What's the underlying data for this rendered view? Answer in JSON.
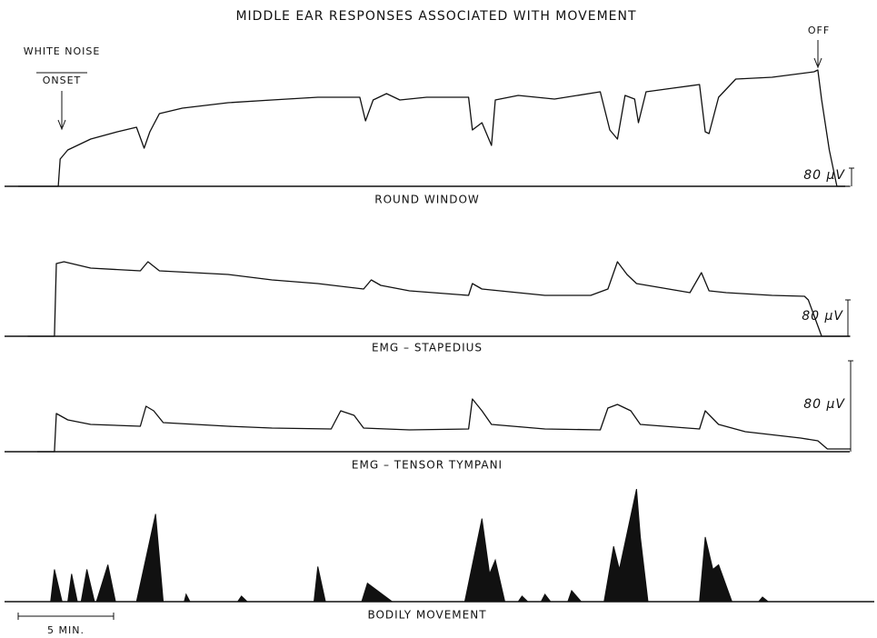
{
  "title": "MIDDLE EAR RESPONSES ASSOCIATED WITH MOVEMENT",
  "annotations": {
    "onset_top": "WHITE NOISE",
    "onset_bottom": "ONSET",
    "off": "OFF"
  },
  "timebar": {
    "value": 5,
    "label": "5 MIN."
  },
  "chart_data": [
    {
      "type": "line",
      "label": "ROUND WINDOW",
      "xlim": [
        -0.5,
        45
      ],
      "ylim": [
        0,
        580
      ],
      "scalebar": {
        "value": 80,
        "label": "80 µV"
      },
      "x": [
        0,
        2.1,
        2.2,
        2.6,
        3.8,
        5.2,
        6.2,
        6.6,
        6.9,
        7.4,
        8.6,
        11,
        13.3,
        15.7,
        17.9,
        18.2,
        18.6,
        19.3,
        20,
        21.4,
        23.6,
        23.8,
        24.3,
        24.8,
        25,
        26.2,
        28.1,
        30.5,
        31,
        31.4,
        31.8,
        32.3,
        32.5,
        32.9,
        34.3,
        35.7,
        36,
        36.2,
        36.7,
        37.6,
        39.5,
        41.7,
        41.9,
        42.1,
        42.5,
        42.9,
        43.6
      ],
      "values": [
        0,
        0,
        120,
        160,
        208,
        240,
        260,
        168,
        240,
        320,
        344,
        368,
        380,
        392,
        392,
        288,
        380,
        408,
        380,
        392,
        392,
        248,
        280,
        180,
        380,
        400,
        384,
        416,
        248,
        208,
        400,
        384,
        280,
        416,
        432,
        448,
        240,
        232,
        392,
        472,
        480,
        504,
        512,
        380,
        160,
        0,
        0
      ]
    },
    {
      "type": "line",
      "label": "EMG – STAPEDIUS",
      "xlim": [
        -0.5,
        45
      ],
      "ylim": [
        0,
        200
      ],
      "scalebar": {
        "value": 80,
        "label": "80 µV"
      },
      "x": [
        0.5,
        1.9,
        2,
        2.4,
        3.8,
        6.4,
        6.8,
        7.4,
        11,
        13.3,
        15.7,
        18.1,
        18.5,
        19,
        20.5,
        23.6,
        23.8,
        24.3,
        27.6,
        30,
        30.9,
        31.4,
        31.9,
        32.4,
        35.2,
        35.8,
        36.2,
        37.1,
        39.5,
        41.2,
        41.4,
        42.1,
        43.6
      ],
      "values": [
        0,
        0,
        160,
        164,
        150,
        144,
        164,
        144,
        136,
        124,
        116,
        104,
        124,
        112,
        100,
        90,
        116,
        104,
        90,
        90,
        104,
        164,
        136,
        116,
        96,
        140,
        100,
        96,
        90,
        88,
        80,
        0,
        0
      ]
    },
    {
      "type": "line",
      "label": "EMG – TENSOR TYMPANI",
      "xlim": [
        -0.5,
        45
      ],
      "ylim": [
        0,
        85.6
      ],
      "scalebar": {
        "value": 80,
        "label": "80 µV"
      },
      "x": [
        1,
        1.9,
        2,
        2.6,
        3.8,
        6.4,
        6.7,
        7.1,
        7.6,
        11,
        13.3,
        16.4,
        16.9,
        17.6,
        18.1,
        20.5,
        23.6,
        23.8,
        24.3,
        24.8,
        27.6,
        30.5,
        30.9,
        31.4,
        32.1,
        32.6,
        35.7,
        36,
        36.7,
        38.1,
        41,
        41.9,
        42.4,
        43.6
      ],
      "values": [
        0,
        0,
        33.6,
        28,
        24,
        22.4,
        40,
        36,
        25.6,
        22.4,
        20.8,
        20,
        36,
        32,
        20.8,
        19.2,
        20,
        46.4,
        36,
        24,
        20,
        19.2,
        38.4,
        41.6,
        36,
        24,
        20,
        36,
        24,
        17.6,
        12,
        9.6,
        2.4,
        2.4
      ]
    },
    {
      "type": "area",
      "label": "BODILY MOVEMENT",
      "xlim": [
        -0.5,
        45
      ],
      "ylim": [
        0,
        130
      ],
      "x": [
        -0.5,
        1.7,
        1.9,
        2.3,
        2.6,
        2.8,
        3.1,
        3.3,
        3.6,
        4,
        4.1,
        4.7,
        5.1,
        6.2,
        7.2,
        7.6,
        8.7,
        8.8,
        9,
        11.5,
        11.7,
        12,
        15.5,
        15.7,
        16.1,
        18,
        18.3,
        19.6,
        23.4,
        24.3,
        24.7,
        25,
        25.5,
        26.2,
        26.4,
        26.7,
        27.4,
        27.6,
        27.9,
        28.8,
        29,
        29.5,
        30.7,
        31.2,
        31.5,
        32.4,
        32.6,
        33,
        35.7,
        36,
        36.4,
        36.7,
        37.4,
        38.8,
        39,
        39.3,
        44.8
      ],
      "values": [
        0,
        0,
        35,
        0,
        0,
        30,
        0,
        0,
        35,
        0,
        0,
        40,
        0,
        0,
        95,
        0,
        0,
        8,
        0,
        0,
        6,
        0,
        0,
        38,
        0,
        0,
        20,
        0,
        0,
        90,
        30,
        45,
        0,
        0,
        6,
        0,
        0,
        8,
        0,
        0,
        12,
        0,
        0,
        60,
        35,
        122,
        70,
        0,
        0,
        70,
        35,
        40,
        0,
        0,
        5,
        0,
        0
      ]
    }
  ]
}
